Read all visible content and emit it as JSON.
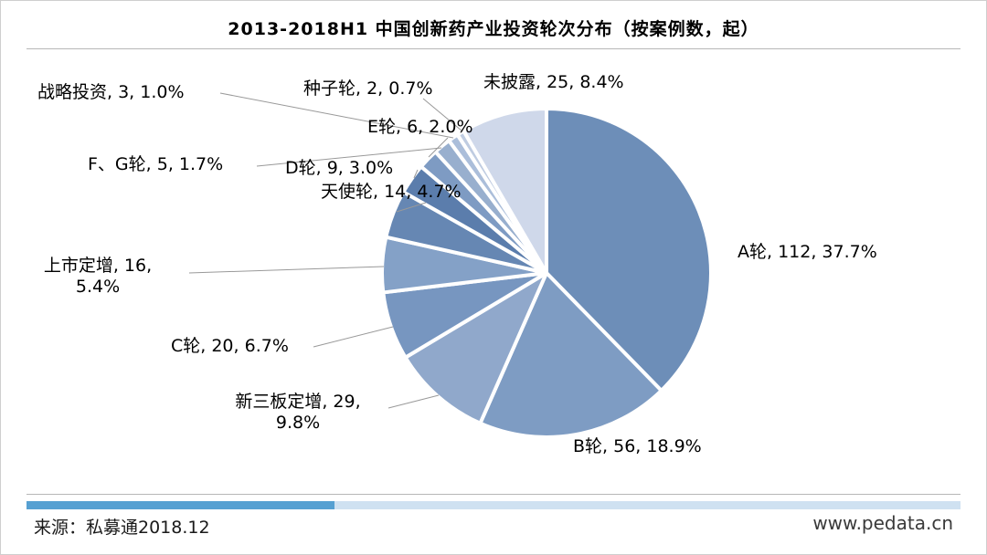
{
  "page": {
    "footer": {
      "source": "来源：私募通2018.12",
      "website": "www.pedata.cn"
    },
    "colors": {
      "divider_bar_fill": "#56a0d2",
      "divider_bar_track": "#cfe1f1",
      "leader_line": "#999999",
      "rule": "#b7b7b7"
    }
  },
  "chart_data": {
    "type": "pie",
    "title": "2013-2018H1 中国创新药产业投资轮次分布（按案例数，起）",
    "direction": "clockwise",
    "start_angle": "12 o'clock",
    "legend_position": "none (direct labels with leader lines)",
    "slices": [
      {
        "label": "A轮",
        "value": 112,
        "percent": 37.7,
        "display": "A轮, 112, 37.7%",
        "color": "#6d8eb8"
      },
      {
        "label": "B轮",
        "value": 56,
        "percent": 18.9,
        "display": "B轮, 56, 18.9%",
        "color": "#7e9cc3"
      },
      {
        "label": "新三板定增",
        "value": 29,
        "percent": 9.8,
        "display": "新三板定增, 29, 9.8%",
        "color": "#90a8cb"
      },
      {
        "label": "C轮",
        "value": 20,
        "percent": 6.7,
        "display": "C轮, 20, 6.7%",
        "color": "#7796c0"
      },
      {
        "label": "上市定增",
        "value": 16,
        "percent": 5.4,
        "display": "上市定增, 16, 5.4%",
        "color": "#84a1c7"
      },
      {
        "label": "天使轮",
        "value": 14,
        "percent": 4.7,
        "display": "天使轮, 14, 4.7%",
        "color": "#6687b3"
      },
      {
        "label": "D轮",
        "value": 9,
        "percent": 3.0,
        "display": "D轮, 9, 3.0%",
        "color": "#5b7dac"
      },
      {
        "label": "E轮",
        "value": 6,
        "percent": 2.0,
        "display": "E轮, 6, 2.0%",
        "color": "#7e9bc3"
      },
      {
        "label": "F、G轮",
        "value": 5,
        "percent": 1.7,
        "display": "F、G轮, 5, 1.7%",
        "color": "#98afce"
      },
      {
        "label": "战略投资",
        "value": 3,
        "percent": 1.0,
        "display": "战略投资, 3, 1.0%",
        "color": "#abbeda"
      },
      {
        "label": "种子轮",
        "value": 2,
        "percent": 0.7,
        "display": "种子轮, 2, 0.7%",
        "color": "#bfcce1"
      },
      {
        "label": "未披露",
        "value": 25,
        "percent": 8.4,
        "display": "未披露, 25, 8.4%",
        "color": "#cfd8ea"
      }
    ]
  }
}
